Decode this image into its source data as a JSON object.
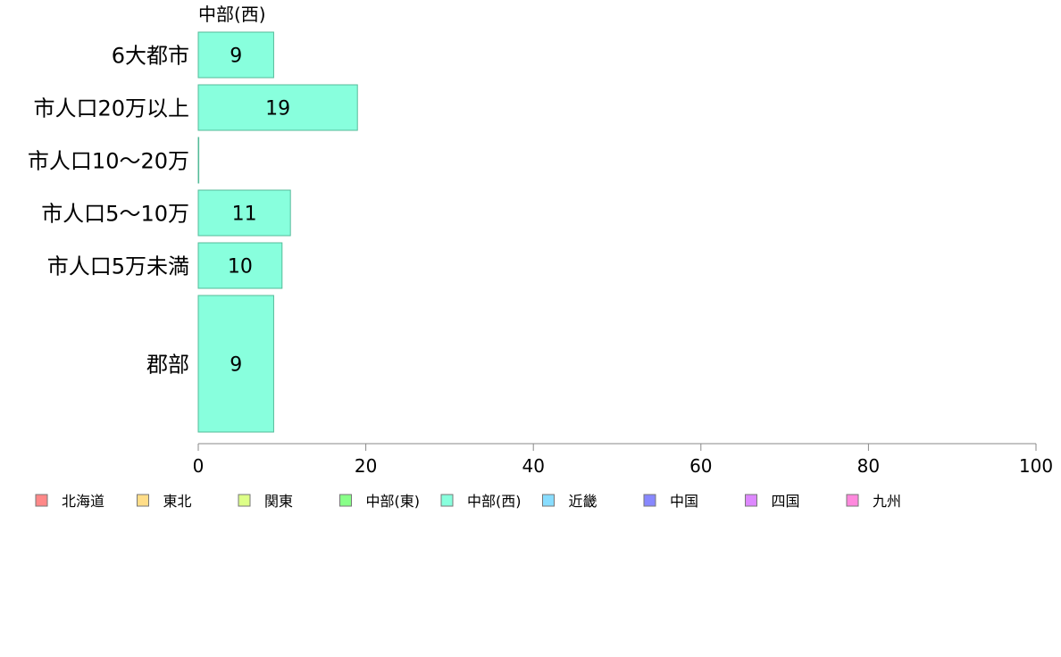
{
  "chart_data": {
    "type": "bar",
    "orientation": "horizontal",
    "title": "中部(西)",
    "categories": [
      "6大都市",
      "市人口20万以上",
      "市人口10〜20万",
      "市人口5〜10万",
      "市人口5万未満",
      "郡部"
    ],
    "values": [
      9,
      19,
      0,
      11,
      10,
      9
    ],
    "data_labels": [
      "9",
      "19",
      "",
      "11",
      "10",
      "9"
    ],
    "category_weights": [
      1,
      1,
      1,
      1,
      1,
      3
    ],
    "xlim": [
      0,
      100
    ],
    "xticks": [
      0,
      20,
      40,
      60,
      80,
      100
    ],
    "xtick_labels": [
      "0",
      "20",
      "40",
      "60",
      "80",
      "100"
    ],
    "bar_color": "#88ffdd",
    "bar_edge": "#55bb99",
    "legend": {
      "position": "bottom",
      "entries": [
        {
          "name": "北海道",
          "color": "#ff8888"
        },
        {
          "name": "東北",
          "color": "#ffdd88"
        },
        {
          "name": "関東",
          "color": "#ddff88"
        },
        {
          "name": "中部(東)",
          "color": "#88ff88"
        },
        {
          "name": "中部(西)",
          "color": "#88ffdd"
        },
        {
          "name": "近畿",
          "color": "#88ddff"
        },
        {
          "name": "中国",
          "color": "#8888ff"
        },
        {
          "name": "四国",
          "color": "#dd88ff"
        },
        {
          "name": "九州",
          "color": "#ff88dd"
        }
      ]
    },
    "grid": false
  }
}
